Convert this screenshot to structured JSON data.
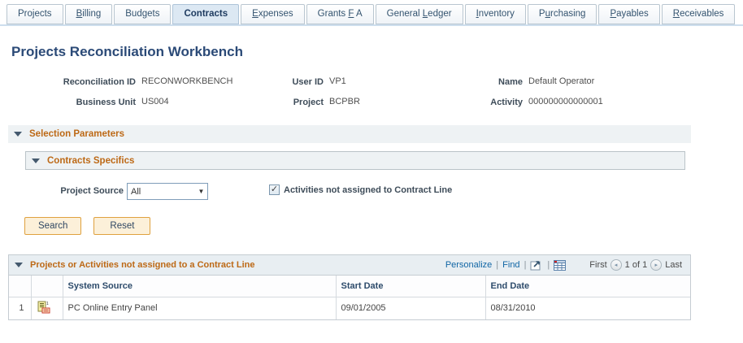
{
  "tabs": [
    {
      "name": "projects",
      "pre": "Pro",
      "key": "j",
      "post": "ects",
      "active": false
    },
    {
      "name": "billing",
      "pre": "",
      "key": "B",
      "post": "illing",
      "active": false
    },
    {
      "name": "budgets",
      "pre": "Bud",
      "key": "g",
      "post": "ets",
      "active": false
    },
    {
      "name": "contracts",
      "pre": "Contracts",
      "key": "",
      "post": "",
      "active": true
    },
    {
      "name": "expenses",
      "pre": "",
      "key": "E",
      "post": "xpenses",
      "active": false
    },
    {
      "name": "grants-fa",
      "pre": "Grants ",
      "key": "F",
      "post": " A",
      "active": false
    },
    {
      "name": "general-ledger",
      "pre": "General ",
      "key": "L",
      "post": "edger",
      "active": false
    },
    {
      "name": "inventory",
      "pre": "",
      "key": "I",
      "post": "nventory",
      "active": false
    },
    {
      "name": "purchasing",
      "pre": "P",
      "key": "u",
      "post": "rchasing",
      "active": false
    },
    {
      "name": "payables",
      "pre": "",
      "key": "P",
      "post": "ayables",
      "active": false
    },
    {
      "name": "receivables",
      "pre": "",
      "key": "R",
      "post": "eceivables",
      "active": false
    }
  ],
  "title": "Projects Reconciliation Workbench",
  "fields": {
    "reconciliation_id": {
      "label": "Reconciliation ID",
      "value": "RECONWORKBENCH"
    },
    "user_id": {
      "label": "User ID",
      "value": "VP1"
    },
    "name": {
      "label": "Name",
      "value": "Default Operator"
    },
    "business_unit": {
      "label": "Business Unit",
      "value": "US004"
    },
    "project": {
      "label": "Project",
      "value": "BCPBR"
    },
    "activity": {
      "label": "Activity",
      "value": "000000000000001"
    }
  },
  "sections": {
    "selection_parameters": "Selection Parameters",
    "contracts_specifics": "Contracts Specifics"
  },
  "controls": {
    "project_source_label": "Project Source",
    "project_source_value": "All",
    "checkbox_checked": true,
    "checkbox_glyph": "✓",
    "checkbox_label": "Activities not assigned to Contract Line"
  },
  "buttons": {
    "search": "Search",
    "reset": "Reset"
  },
  "grid": {
    "title": "Projects or Activities not assigned to a Contract Line",
    "toolbar": {
      "personalize": "Personalize",
      "find": "Find",
      "separator": "|"
    },
    "pager": {
      "first": "First",
      "prev_glyph": "◂",
      "position": "1 of 1",
      "next_glyph": "▸",
      "last": "Last"
    },
    "columns": {
      "system_source": "System Source",
      "start_date": "Start Date",
      "end_date": "End Date"
    },
    "rows": [
      {
        "num": "1",
        "system_source": "PC Online Entry Panel",
        "start_date": "09/01/2005",
        "end_date": "08/31/2010"
      }
    ]
  },
  "colors": {
    "accent_orange": "#bd6916",
    "link_blue": "#1166a5",
    "active_tab_bg": "#dce8f3",
    "button_bg": "#fcf0d9",
    "button_border": "#dfa13f"
  }
}
